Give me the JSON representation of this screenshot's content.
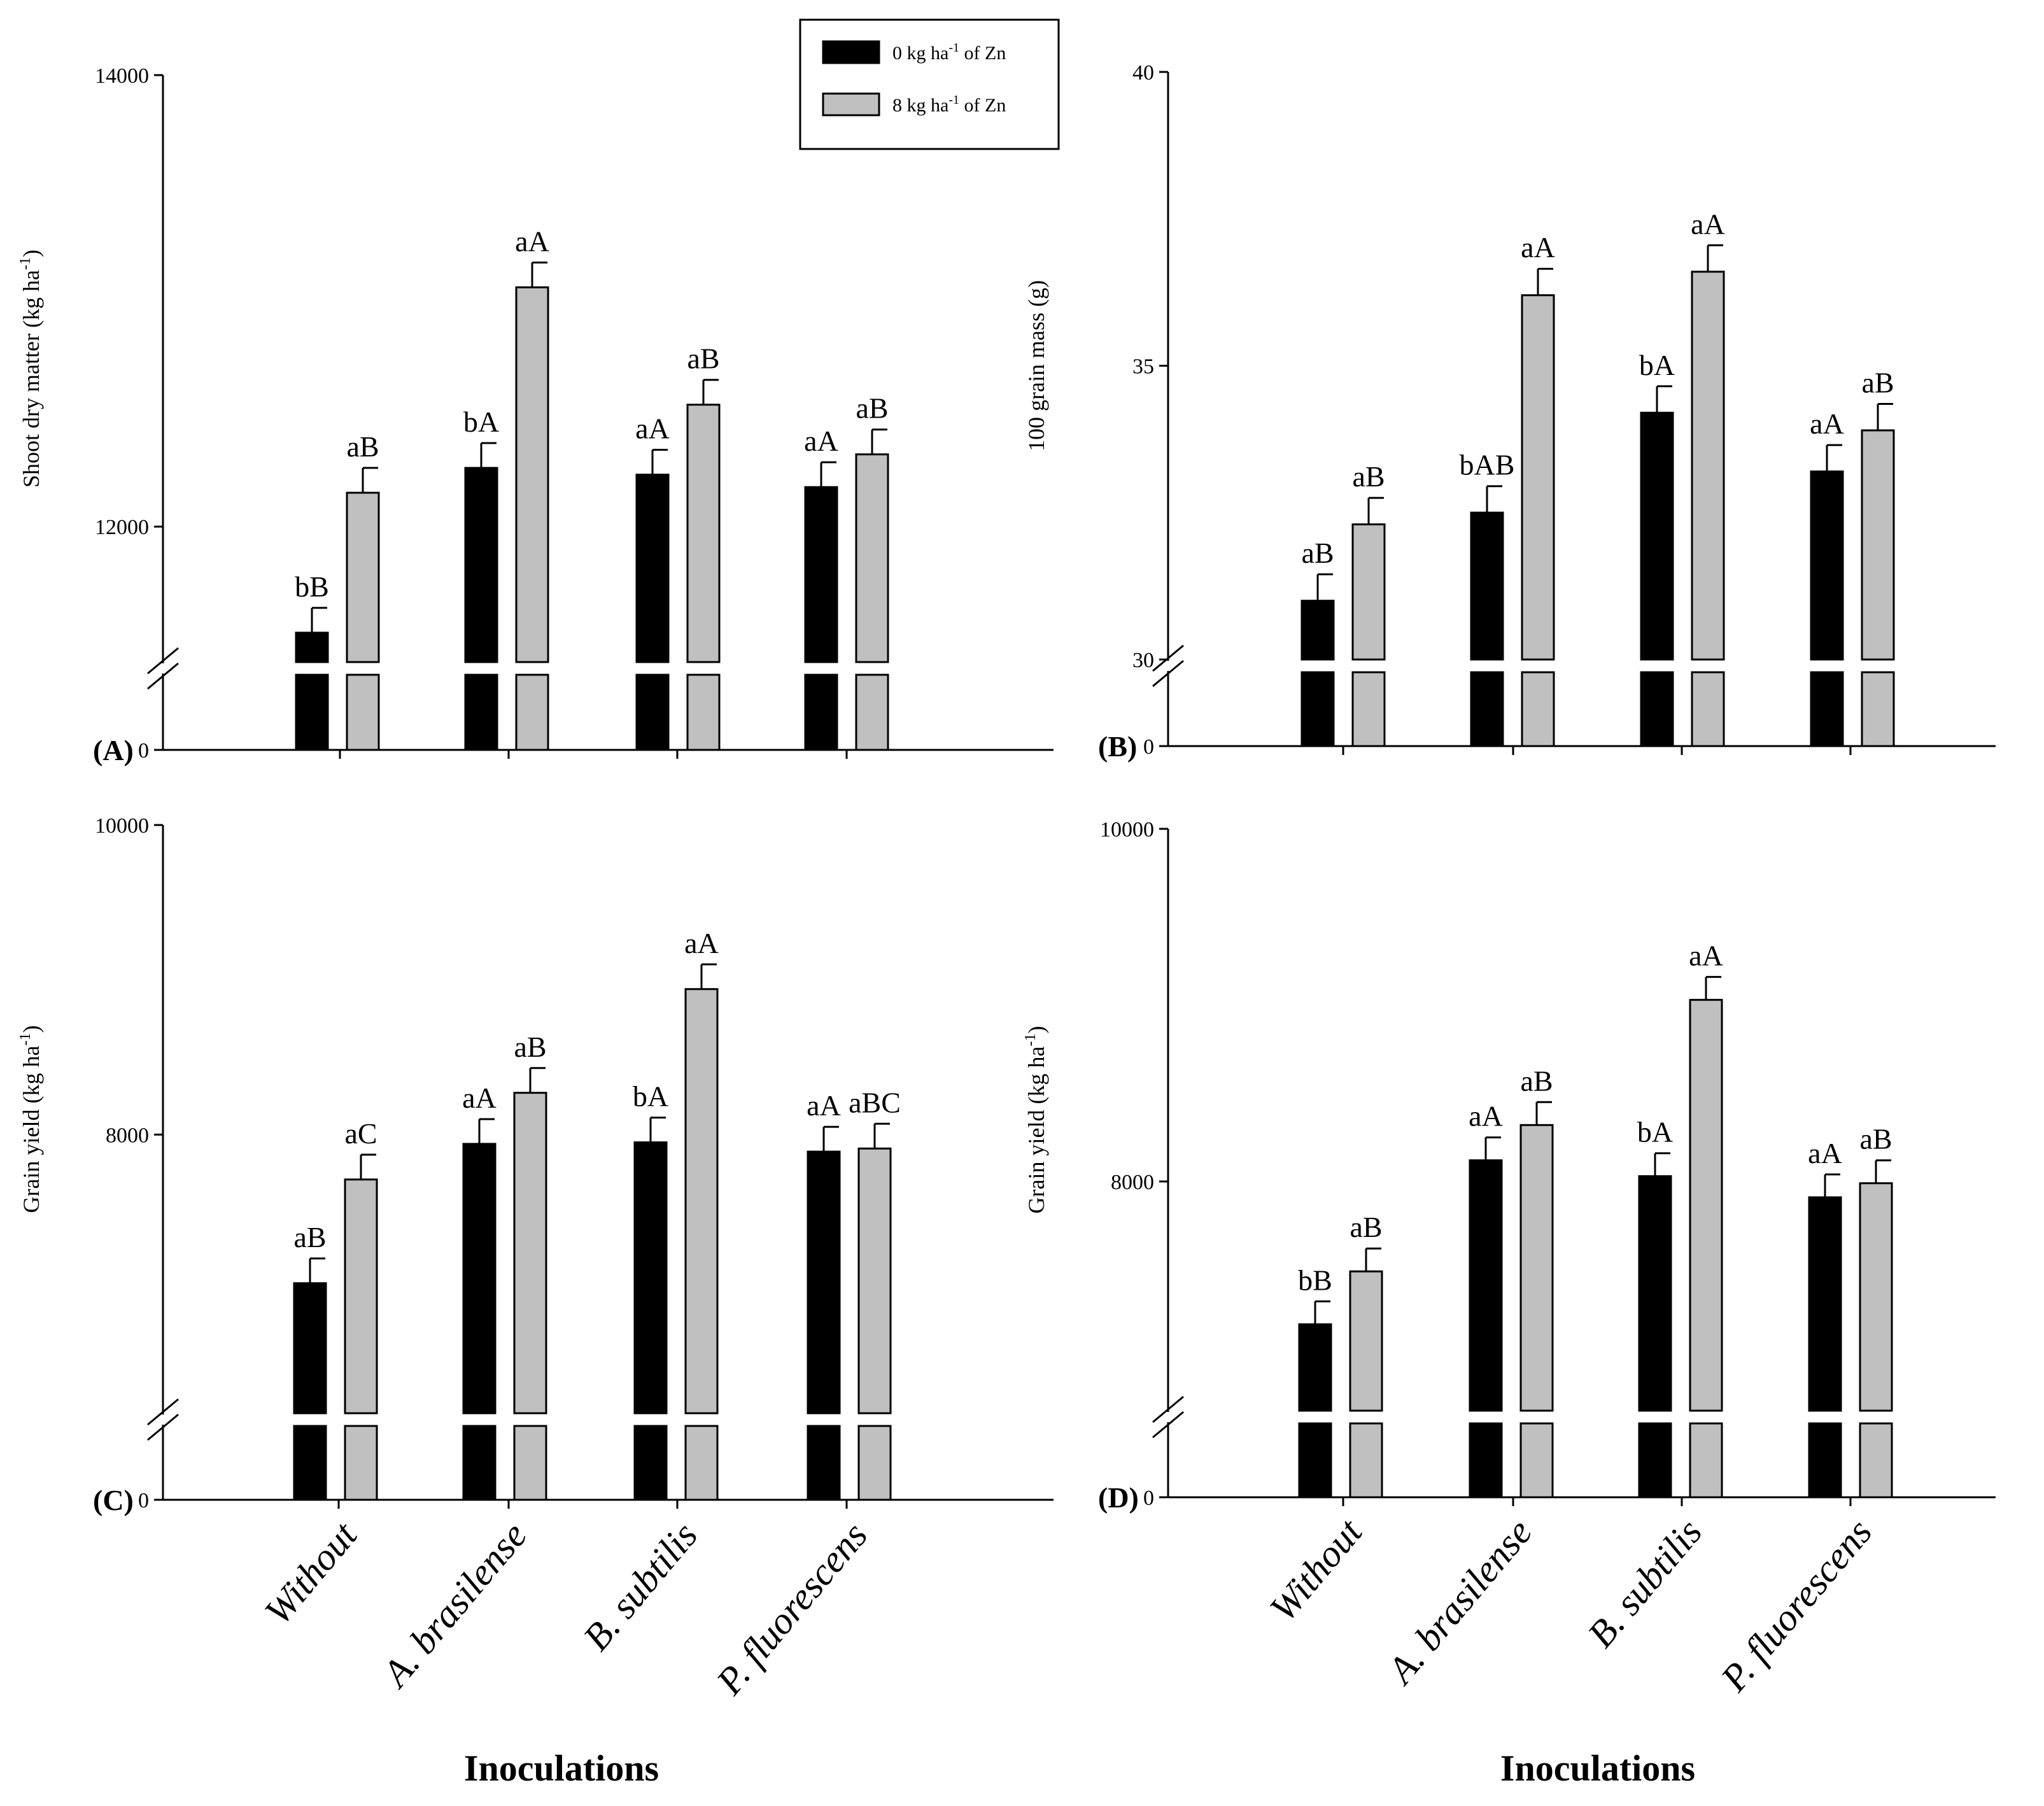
{
  "legend": {
    "entries": [
      {
        "label_prefix": "0 kg ha",
        "sup": "-1",
        "label_suffix": " of Zn",
        "color": "#000000"
      },
      {
        "label_prefix": "8 kg ha",
        "sup": "-1",
        "label_suffix": " of Zn",
        "color": "#c0c0c0"
      }
    ]
  },
  "x_title": "Inoculations",
  "chart_data": [
    {
      "panel": "(A)",
      "type": "bar",
      "ylabel_main": "Shoot dry matter (kg ha",
      "ylabel_sup": "-1",
      "ylabel_end": ")",
      "ylim": [
        11400,
        14000
      ],
      "yticks": [
        "14000",
        "12000"
      ],
      "ytick_values": [
        14000,
        12000
      ],
      "zero_label": "0",
      "axis_break": true,
      "categories": [
        "Without",
        "A. brasilense",
        "B. subtilis",
        "P. fluorescens"
      ],
      "series": [
        {
          "name": "0 kg ha-1 of Zn",
          "values": [
            11530,
            12260,
            12230,
            12175
          ],
          "errors": [
            110,
            110,
            110,
            110
          ],
          "labels": [
            "bB",
            "bA",
            "aA",
            "aA"
          ]
        },
        {
          "name": "8 kg ha-1 of Zn",
          "values": [
            12150,
            13060,
            12540,
            12320
          ],
          "errors": [
            110,
            110,
            110,
            110
          ],
          "labels": [
            "aB",
            "aA",
            "aB",
            "aB"
          ]
        }
      ]
    },
    {
      "panel": "(B)",
      "type": "bar",
      "ylabel_main": "100 grain mass (g)",
      "ylabel_sup": "",
      "ylabel_end": "",
      "ylim": [
        30,
        40
      ],
      "yticks": [
        "40",
        "35",
        "30"
      ],
      "ytick_values": [
        40,
        35,
        30
      ],
      "zero_label": "0",
      "axis_break": true,
      "categories": [
        "Without",
        "A. brasilense",
        "B. subtilis",
        "P. fluorescens"
      ],
      "series": [
        {
          "name": "0 kg ha-1 of Zn",
          "values": [
            31.0,
            32.5,
            34.2,
            33.2
          ],
          "errors": [
            0.45,
            0.45,
            0.45,
            0.45
          ],
          "labels": [
            "aB",
            "bAB",
            "bA",
            "aA"
          ]
        },
        {
          "name": "8 kg ha-1 of Zn",
          "values": [
            32.3,
            36.2,
            36.6,
            33.9
          ],
          "errors": [
            0.45,
            0.45,
            0.45,
            0.45
          ],
          "labels": [
            "aB",
            "aA",
            "aA",
            "aB"
          ]
        }
      ]
    },
    {
      "panel": "(C)",
      "type": "bar",
      "ylabel_main": "Grain yield (kg ha",
      "ylabel_sup": "-1",
      "ylabel_end": ")",
      "ylim": [
        6200,
        10000
      ],
      "yticks": [
        "10000",
        "8000"
      ],
      "ytick_values": [
        10000,
        8000
      ],
      "zero_label": "0",
      "axis_break": true,
      "categories": [
        "Without",
        "A. brasilense",
        "B. subtilis",
        "P. fluorescens"
      ],
      "series": [
        {
          "name": "0 kg ha-1 of Zn",
          "values": [
            7040,
            7940,
            7950,
            7890
          ],
          "errors": [
            160,
            160,
            160,
            160
          ],
          "labels": [
            "aB",
            "aA",
            "bA",
            "aA"
          ]
        },
        {
          "name": "8 kg ha-1 of Zn",
          "values": [
            7710,
            8270,
            8940,
            7910
          ],
          "errors": [
            160,
            160,
            160,
            160
          ],
          "labels": [
            "aC",
            "aB",
            "aA",
            "aBC"
          ]
        }
      ]
    },
    {
      "panel": "(D)",
      "type": "bar",
      "ylabel_main": "Grain yield (kg ha",
      "ylabel_sup": "-1",
      "ylabel_end": ")",
      "ylim": [
        6700,
        10000
      ],
      "yticks": [
        "10000",
        "8000"
      ],
      "ytick_values": [
        10000,
        8000
      ],
      "zero_label": "0",
      "axis_break": true,
      "categories": [
        "Without",
        "A. brasilense",
        "B. subtilis",
        "P. fluorescens"
      ],
      "series": [
        {
          "name": "0 kg ha-1 of Zn",
          "values": [
            7190,
            8120,
            8030,
            7910
          ],
          "errors": [
            130,
            130,
            130,
            130
          ],
          "labels": [
            "bB",
            "aA",
            "bA",
            "aA"
          ]
        },
        {
          "name": "8 kg ha-1 of Zn",
          "values": [
            7490,
            8320,
            9030,
            7990
          ],
          "errors": [
            130,
            130,
            130,
            130
          ],
          "labels": [
            "aB",
            "aB",
            "aA",
            "aB"
          ]
        }
      ]
    }
  ]
}
